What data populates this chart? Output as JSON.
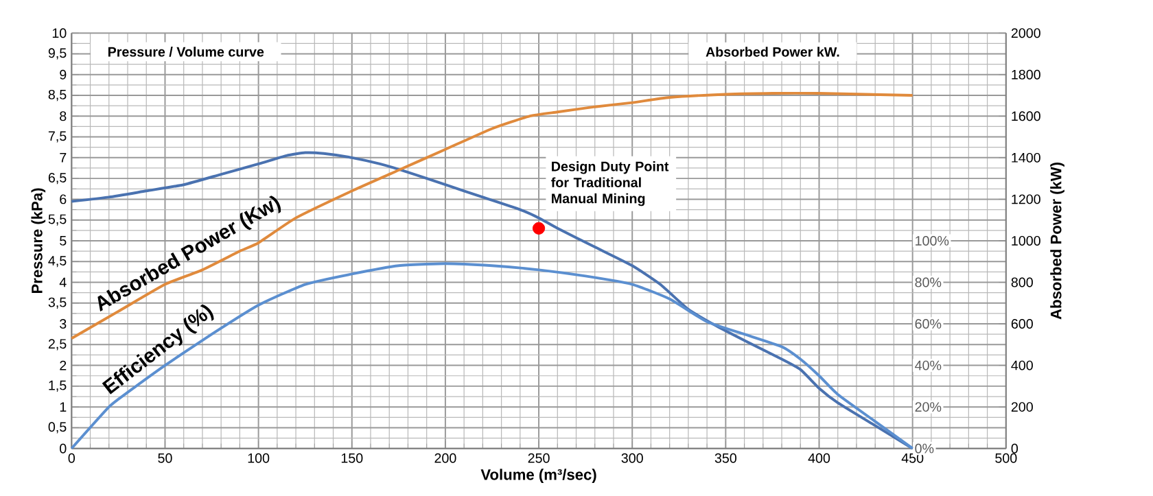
{
  "chart_data": {
    "type": "line",
    "xlabel": "Volume (m³/sec)",
    "ylabel": "Pressure (kPa)",
    "y2label": "Absorbed Power (kW)",
    "xlim": [
      0,
      500
    ],
    "xticks": [
      0,
      50,
      100,
      150,
      200,
      250,
      300,
      350,
      400,
      450,
      500
    ],
    "ylim": [
      0,
      10
    ],
    "yticks": [
      0,
      {
        "value": 0.5,
        "label": "0,5"
      },
      1,
      {
        "value": 1.5,
        "label": "1,5"
      },
      2,
      {
        "value": 2.5,
        "label": "2,5"
      },
      3,
      {
        "value": 3.5,
        "label": "3,5"
      },
      4,
      {
        "value": 4.5,
        "label": "4,5"
      },
      5,
      {
        "value": 5.5,
        "label": "5,5"
      },
      6,
      {
        "value": 6.5,
        "label": "6,5"
      },
      7,
      {
        "value": 7.5,
        "label": "7,5"
      },
      8,
      {
        "value": 8.5,
        "label": "8,5"
      },
      9,
      {
        "value": 9.5,
        "label": "9,5"
      },
      10
    ],
    "y2lim": [
      0,
      2000
    ],
    "y2ticks": [
      0,
      200,
      400,
      600,
      800,
      1000,
      1200,
      1400,
      1600,
      1800,
      2000
    ],
    "y3lim": [
      0,
      200
    ],
    "y3ticks": [
      {
        "value": 0,
        "label": "0%"
      },
      {
        "value": 20,
        "label": "20%"
      },
      {
        "value": 40,
        "label": "40%"
      },
      {
        "value": 60,
        "label": "60%"
      },
      {
        "value": 80,
        "label": "80%"
      },
      {
        "value": 100,
        "label": "100%"
      }
    ],
    "grid": true,
    "series": [
      {
        "color": "#4a72b0",
        "x": [
          0,
          20,
          40,
          60,
          80,
          100,
          115,
          125,
          135,
          150,
          165,
          180,
          200,
          220,
          240,
          250,
          260,
          280,
          300,
          315,
          330,
          345,
          360,
          380,
          390,
          400,
          410,
          430,
          450
        ],
        "values": [
          5.95,
          6.05,
          6.2,
          6.35,
          6.6,
          6.85,
          7.05,
          7.12,
          7.1,
          7.0,
          6.85,
          6.65,
          6.35,
          6.05,
          5.75,
          5.55,
          5.3,
          4.85,
          4.4,
          3.95,
          3.35,
          2.95,
          2.6,
          2.15,
          1.9,
          1.45,
          1.1,
          0.55,
          0
        ]
      },
      {
        "name": "Absorbed Power (Kw)",
        "color": "#e08a3c",
        "axis": "y2",
        "x": [
          0,
          25,
          50,
          70,
          90,
          100,
          120,
          150,
          175,
          200,
          225,
          245,
          260,
          280,
          300,
          320,
          350,
          375,
          400,
          425,
          450
        ],
        "values": [
          530,
          660,
          790,
          860,
          950,
          990,
          1110,
          1240,
          1340,
          1440,
          1540,
          1600,
          1620,
          1645,
          1665,
          1690,
          1705,
          1710,
          1710,
          1705,
          1700
        ]
      },
      {
        "name": "Efficiency (%)",
        "color": "#5b8fd0",
        "axis": "y3",
        "x": [
          0,
          20,
          30,
          50,
          75,
          100,
          125,
          150,
          175,
          200,
          225,
          250,
          275,
          300,
          320,
          340,
          360,
          380,
          390,
          400,
          410,
          430,
          450
        ],
        "values": [
          0,
          20,
          27,
          40,
          55,
          69,
          79,
          84,
          88,
          89,
          88,
          86,
          83,
          79,
          72,
          61,
          55,
          49,
          43,
          35,
          26,
          13,
          0
        ]
      },
      {
        "type": "scatter",
        "color": "#ff0000",
        "x": [
          250
        ],
        "values": [
          5.3
        ]
      }
    ],
    "annotations": [
      "Pressure / Volume curve",
      "Absorbed Power kW.",
      {
        "text": "Design Duty Point for Traditional Manual Mining",
        "x": 250,
        "y": 5.3
      }
    ]
  }
}
